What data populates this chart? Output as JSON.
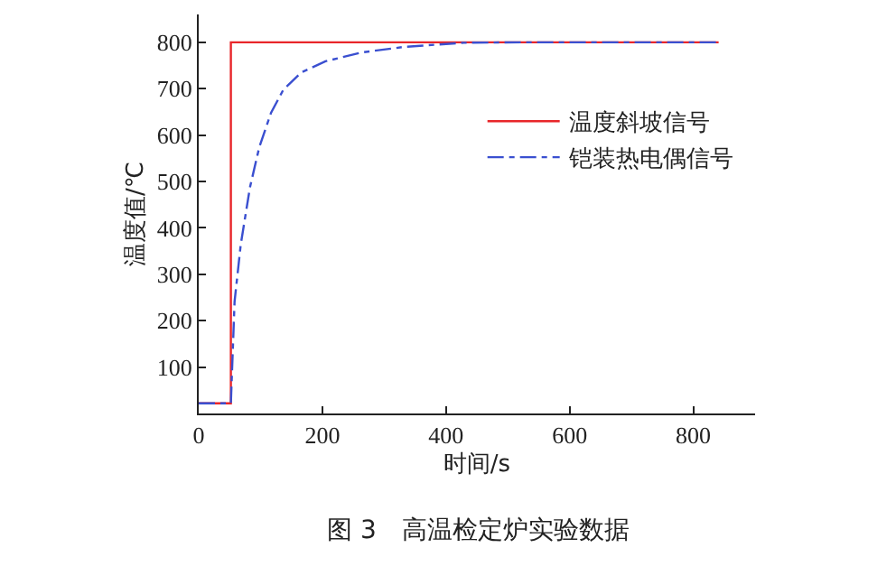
{
  "chart_data": {
    "type": "line",
    "xlabel": "时间/s",
    "ylabel": "温度值/℃",
    "xlim": [
      0,
      900
    ],
    "xticks": [
      0,
      200,
      400,
      600,
      800
    ],
    "ylim": [
      0,
      860
    ],
    "yticks": [
      100,
      200,
      300,
      400,
      500,
      600,
      700,
      800
    ],
    "legend": "top right",
    "annotations": [
      "图 3　高温检定炉实验数据"
    ],
    "series": [
      {
        "name": "温度斜坡信号",
        "color": "#e8262a",
        "line_style": "solid",
        "x": [
          0,
          52,
          52,
          841
        ],
        "values": [
          22,
          22,
          800,
          800
        ]
      },
      {
        "name": "铠装热电偶信号",
        "color": "#3a4fd0",
        "line_style": "dashed",
        "x": [
          0,
          52,
          58,
          68,
          83,
          98,
          117,
          137,
          166,
          205,
          263,
          332,
          429,
          527,
          841
        ],
        "values": [
          22,
          22,
          241,
          364,
          488,
          574,
          648,
          698,
          735,
          759,
          778,
          790,
          799,
          800,
          800
        ]
      }
    ]
  }
}
